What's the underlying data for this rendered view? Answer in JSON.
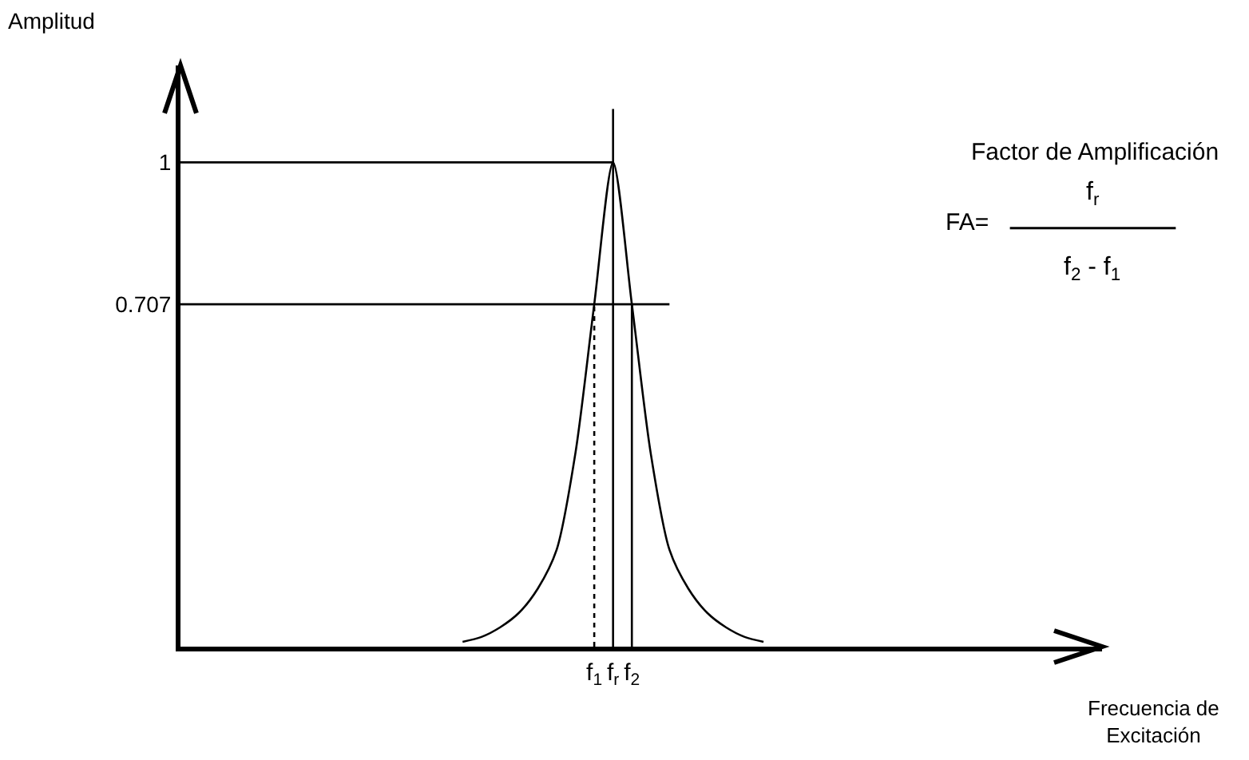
{
  "chart_data": {
    "type": "line",
    "xlabel": "Frecuencia de\nExcitación",
    "ylabel": "Amplitud",
    "annotations": [
      "Factor de Amplificación",
      "FA=",
      "f$_{r}$",
      "f$_{2}$ - f$_{1}$"
    ],
    "categories": [
      null,
      null,
      null,
      null,
      null,
      null,
      null,
      null,
      null,
      null,
      null,
      null,
      null,
      null,
      null,
      null,
      null,
      null,
      null,
      null,
      null,
      null,
      "f$_{1}$",
      "f$_{r}$",
      "f$_{2}$",
      null,
      null,
      null,
      null,
      null,
      null,
      null,
      null,
      null,
      null,
      null,
      null,
      null,
      null,
      null,
      null,
      null,
      null,
      null,
      null,
      null,
      null,
      null,
      null,
      null
    ],
    "ylim": [
      0,
      1.2
    ],
    "yticks": [
      0.707,
      1
    ],
    "marker": "none",
    "line_style": "solid",
    "series": [
      {
        "color": "#000000",
        "values": [
          null,
          null,
          null,
          null,
          null,
          null,
          null,
          null,
          null,
          null,
          null,
          null,
          null,
          null,
          null,
          0.01,
          0.02,
          0.04,
          0.07,
          0.12,
          0.2,
          0.4,
          0.707,
          1.0,
          0.707,
          0.4,
          0.2,
          0.12,
          0.07,
          0.04,
          0.02,
          0.01,
          null,
          null,
          null,
          null,
          null,
          null,
          null,
          null,
          null,
          null,
          null,
          null,
          null,
          null,
          null,
          null,
          null,
          null
        ]
      },
      {
        "color": "#000000",
        "values": [
          1,
          1,
          1,
          1,
          1,
          1,
          1,
          1,
          1,
          1,
          1,
          1,
          1,
          1,
          1,
          1,
          1,
          1,
          1,
          1,
          1,
          1,
          1,
          1,
          null,
          null,
          null,
          null,
          null,
          null,
          null,
          null,
          null,
          null,
          null,
          null,
          null,
          null,
          null,
          null,
          null,
          null,
          null,
          null,
          null,
          null,
          null,
          null,
          null,
          null
        ]
      },
      {
        "color": "#000000",
        "values": [
          0.707,
          0.707,
          0.707,
          0.707,
          0.707,
          0.707,
          0.707,
          0.707,
          0.707,
          0.707,
          0.707,
          0.707,
          0.707,
          0.707,
          0.707,
          0.707,
          0.707,
          0.707,
          0.707,
          0.707,
          0.707,
          0.707,
          0.707,
          0.707,
          0.707,
          0.707,
          0.707,
          null,
          null,
          null,
          null,
          null,
          null,
          null,
          null,
          null,
          null,
          null,
          null,
          null,
          null,
          null,
          null,
          null,
          null,
          null,
          null,
          null,
          null,
          null
        ]
      },
      {
        "color": "#000000",
        "x": [
          "f$_{r}$",
          "f$_{r}$"
        ],
        "values": [
          0,
          1.11
        ]
      },
      {
        "color": "#000000",
        "x": [
          "f$_{1}$",
          "f$_{1}$"
        ],
        "values": [
          0,
          0.707
        ],
        "line_style": "dotted"
      },
      {
        "color": "#000000",
        "x": [
          "f$_{2}$",
          "f$_{2}$"
        ],
        "values": [
          0,
          0.707
        ]
      }
    ]
  }
}
